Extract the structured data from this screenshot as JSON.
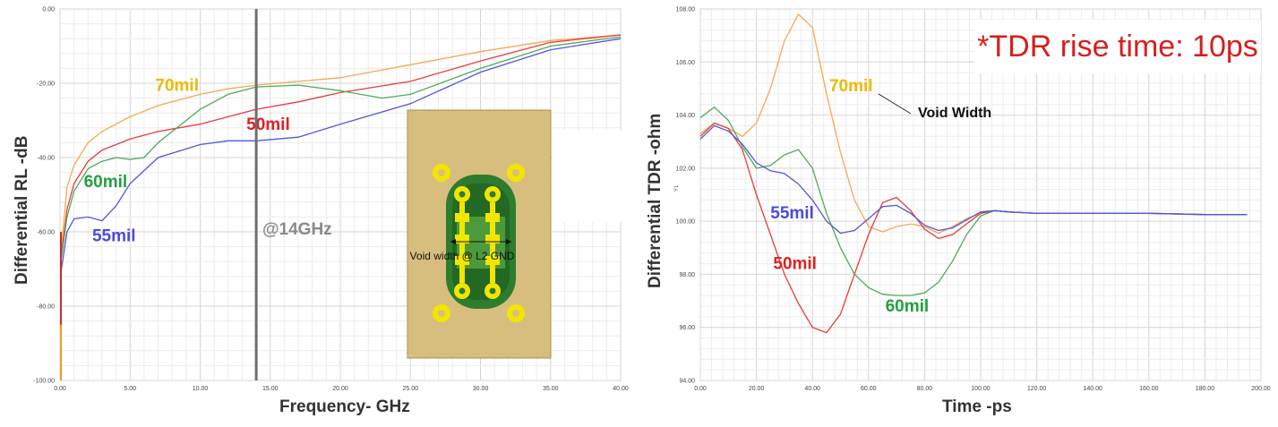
{
  "chart_data": [
    {
      "type": "line",
      "xlabel": "Frequency- GHz",
      "ylabel": "Differential RL -dB",
      "xlim": [
        0,
        40
      ],
      "ylim": [
        -100,
        0
      ],
      "xticks": [
        0,
        5,
        10,
        15,
        20,
        25,
        30,
        35,
        40
      ],
      "xtick_labels": [
        "0.00",
        "5.00",
        "10.00",
        "15.00",
        "20.00",
        "25.00",
        "30.00",
        "35.00",
        "40.00"
      ],
      "yticks": [
        0,
        -20,
        -40,
        -60,
        -80,
        -100
      ],
      "ytick_labels": [
        "0.00",
        "-20.00",
        "-40.00",
        "-60.00",
        "-80.00",
        "-100.00"
      ],
      "grid": true,
      "marker_line": {
        "x": 14,
        "label": "@14GHz"
      },
      "inset_label": "Void width @ L2 GND",
      "series": [
        {
          "name": "70mil",
          "color": "#f5a850",
          "label_color": "#f0b800",
          "x": [
            0.1,
            0.5,
            1,
            2,
            3,
            5,
            7,
            10,
            12,
            14,
            17,
            20,
            25,
            30,
            35,
            40
          ],
          "y": [
            -64,
            -48,
            -42,
            -36,
            -33,
            -29,
            -26,
            -23,
            -21.5,
            -20.5,
            -19.5,
            -18.5,
            -15,
            -11.5,
            -8.5,
            -7
          ]
        },
        {
          "name": "50mil",
          "color": "#e83a3a",
          "label_color": "#e02020",
          "x": [
            0.1,
            0.5,
            1,
            2,
            3,
            5,
            7,
            10,
            12,
            14,
            17,
            20,
            25,
            30,
            35,
            40
          ],
          "y": [
            -66,
            -54,
            -47,
            -41,
            -38,
            -35,
            -33,
            -31,
            -29,
            -27,
            -25,
            -22.5,
            -19.5,
            -14,
            -9,
            -7
          ]
        },
        {
          "name": "60mil",
          "color": "#4daa5a",
          "label_color": "#22a040",
          "x": [
            0.1,
            0.5,
            1,
            2,
            3,
            4,
            5,
            6,
            7,
            10,
            12,
            14,
            17,
            20,
            23,
            25,
            30,
            35,
            40
          ],
          "y": [
            -67,
            -56,
            -49,
            -43,
            -41,
            -40,
            -40.5,
            -40,
            -36,
            -27,
            -23,
            -21,
            -20.5,
            -22,
            -24,
            -23,
            -16,
            -10,
            -7.5
          ]
        },
        {
          "name": "55mil",
          "color": "#5454e0",
          "label_color": "#4b4bdd",
          "x": [
            0.1,
            0.5,
            1,
            2,
            3,
            4,
            5,
            7,
            10,
            12,
            14,
            17,
            20,
            25,
            30,
            35,
            40
          ],
          "y": [
            -70,
            -60,
            -56.5,
            -56,
            -57,
            -53,
            -47,
            -40,
            -36.5,
            -35.5,
            -35.5,
            -34.5,
            -31,
            -25.5,
            -17,
            -11,
            -8
          ]
        }
      ]
    },
    {
      "type": "line",
      "xlabel": "Time -ps",
      "ylabel": "Differential TDR -ohm",
      "ylabel_small": "Y1",
      "xlim": [
        0,
        200
      ],
      "ylim": [
        94,
        108
      ],
      "xticks": [
        0,
        20,
        40,
        60,
        80,
        100,
        120,
        140,
        160,
        180,
        200
      ],
      "xtick_labels": [
        "0.00",
        "20.00",
        "40.00",
        "60.00",
        "80.00",
        "100.00",
        "120.00",
        "140.00",
        "160.00",
        "180.00",
        "200.00"
      ],
      "yticks": [
        94,
        96,
        98,
        100,
        102,
        104,
        106,
        108
      ],
      "ytick_labels": [
        "94.00",
        "96.00",
        "98.00",
        "100.00",
        "102.00",
        "104.00",
        "106.00",
        "108.00"
      ],
      "grid": true,
      "note": "*TDR rise time: 10ps",
      "callout": "Void Width",
      "series": [
        {
          "name": "70mil",
          "color": "#f5a850",
          "label_color": "#f0b800",
          "x": [
            0,
            5,
            10,
            15,
            20,
            25,
            30,
            35,
            40,
            45,
            50,
            55,
            60,
            65,
            70,
            75,
            80,
            85,
            90,
            95,
            100,
            105,
            110,
            120,
            140,
            160,
            180,
            195
          ],
          "y": [
            103.3,
            103.7,
            103.5,
            103.2,
            103.7,
            105.0,
            106.8,
            107.8,
            107.3,
            104.8,
            102.6,
            100.8,
            99.8,
            99.6,
            99.8,
            99.9,
            99.8,
            99.55,
            99.8,
            100.1,
            100.3,
            100.4,
            100.35,
            100.3,
            100.3,
            100.3,
            100.25,
            100.25
          ]
        },
        {
          "name": "50mil",
          "color": "#e83a3a",
          "label_color": "#e02020",
          "x": [
            0,
            5,
            10,
            15,
            20,
            25,
            30,
            35,
            40,
            45,
            50,
            55,
            60,
            65,
            70,
            75,
            80,
            85,
            90,
            95,
            100,
            105,
            110,
            120,
            140,
            160,
            180,
            195
          ],
          "y": [
            103.2,
            103.7,
            103.5,
            102.7,
            101.0,
            99.5,
            98.0,
            96.9,
            96.0,
            95.8,
            96.5,
            98.0,
            99.5,
            100.7,
            100.9,
            100.4,
            99.7,
            99.35,
            99.5,
            99.9,
            100.3,
            100.4,
            100.35,
            100.3,
            100.3,
            100.3,
            100.25,
            100.25
          ]
        },
        {
          "name": "60mil",
          "color": "#4daa5a",
          "label_color": "#22a040",
          "x": [
            0,
            5,
            10,
            15,
            20,
            25,
            30,
            35,
            40,
            45,
            50,
            55,
            60,
            65,
            70,
            75,
            80,
            85,
            90,
            95,
            100,
            105,
            110,
            120,
            140,
            160,
            180,
            195
          ],
          "y": [
            103.9,
            104.3,
            103.8,
            102.8,
            102.0,
            102.1,
            102.5,
            102.7,
            102.0,
            100.3,
            99.0,
            98.0,
            97.5,
            97.25,
            97.2,
            97.2,
            97.3,
            97.7,
            98.5,
            99.5,
            100.2,
            100.4,
            100.35,
            100.3,
            100.3,
            100.3,
            100.25,
            100.25
          ]
        },
        {
          "name": "55mil",
          "color": "#5454e0",
          "label_color": "#4b4bdd",
          "x": [
            0,
            5,
            10,
            15,
            20,
            25,
            30,
            35,
            40,
            45,
            50,
            55,
            60,
            65,
            70,
            75,
            80,
            85,
            90,
            95,
            100,
            105,
            110,
            120,
            140,
            160,
            180,
            195
          ],
          "y": [
            103.1,
            103.6,
            103.4,
            102.9,
            102.2,
            101.9,
            101.8,
            101.4,
            100.8,
            100.0,
            99.55,
            99.65,
            100.1,
            100.55,
            100.6,
            100.3,
            99.85,
            99.65,
            99.75,
            100.05,
            100.35,
            100.4,
            100.35,
            100.3,
            100.3,
            100.3,
            100.25,
            100.25
          ]
        }
      ]
    }
  ]
}
